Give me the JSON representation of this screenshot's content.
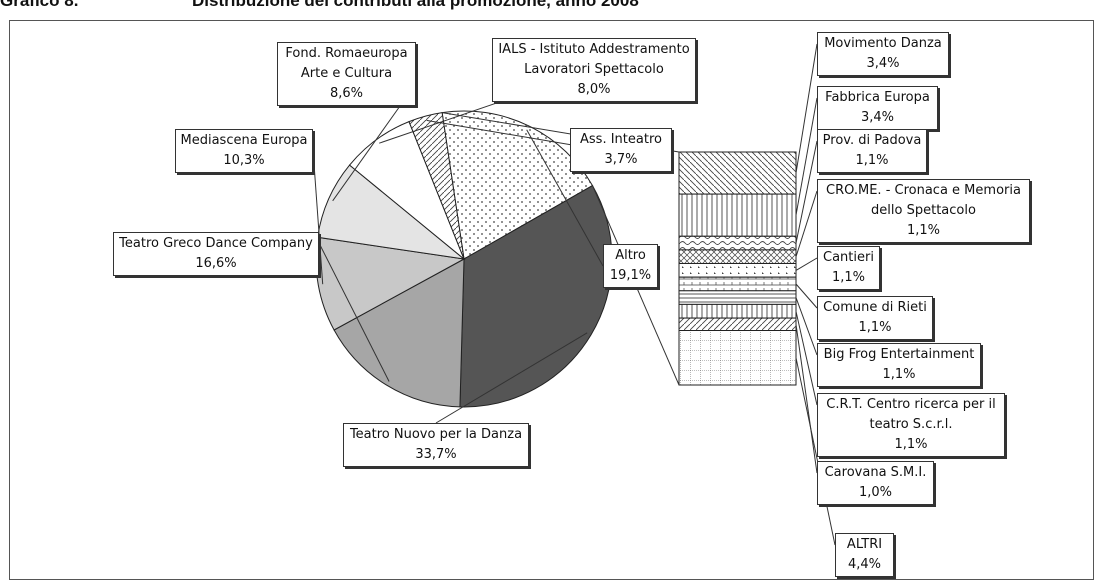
{
  "header": {
    "grafico": "Grafico 8.",
    "title": "Distribuzione dei contributi alla promozione, anno 2008"
  },
  "chart_data": {
    "type": "pie",
    "main": {
      "slices": [
        {
          "label_lines": [
            "Altro",
            "19,1%"
          ],
          "value": 19.1
        },
        {
          "label_lines": [
            "Teatro Nuovo per la Danza",
            "33,7%"
          ],
          "value": 33.7
        },
        {
          "label_lines": [
            "Teatro Greco Dance Company",
            "16,6%"
          ],
          "value": 16.6
        },
        {
          "label_lines": [
            "Mediascena Europa",
            "10,3%"
          ],
          "value": 10.3
        },
        {
          "label_lines": [
            "Fond. Romaeuropa",
            "Arte e Cultura",
            "8,6%"
          ],
          "value": 8.6
        },
        {
          "label_lines": [
            "IALS - Istituto Addestramento",
            "Lavoratori Spettacolo",
            "8,0%"
          ],
          "value": 8.0
        },
        {
          "label_lines": [
            "Ass. Inteatro",
            "3,7%"
          ],
          "value": 3.7
        }
      ]
    },
    "breakdown": {
      "parent": "Altro",
      "items": [
        {
          "label_lines": [
            "Movimento Danza",
            "3,4%"
          ],
          "value": 3.4
        },
        {
          "label_lines": [
            "Fabbrica Europa",
            "3,4%"
          ],
          "value": 3.4
        },
        {
          "label_lines": [
            "Prov. di Padova",
            "1,1%"
          ],
          "value": 1.1
        },
        {
          "label_lines": [
            "CRO.ME. - Cronaca e Memoria",
            "dello Spettacolo",
            "1,1%"
          ],
          "value": 1.1
        },
        {
          "label_lines": [
            "Cantieri",
            "1,1%"
          ],
          "value": 1.1
        },
        {
          "label_lines": [
            "Comune di Rieti",
            "1,1%"
          ],
          "value": 1.1
        },
        {
          "label_lines": [
            "Big Frog Entertainment",
            "1,1%"
          ],
          "value": 1.1
        },
        {
          "label_lines": [
            "C.R.T. Centro ricerca per il",
            "teatro S.c.r.l.",
            "1,1%"
          ],
          "value": 1.1
        },
        {
          "label_lines": [
            "Carovana S.M.I.",
            "1,0%"
          ],
          "value": 1.0
        },
        {
          "label_lines": [
            "ALTRI",
            "4,4%"
          ],
          "value": 4.4
        }
      ]
    }
  }
}
